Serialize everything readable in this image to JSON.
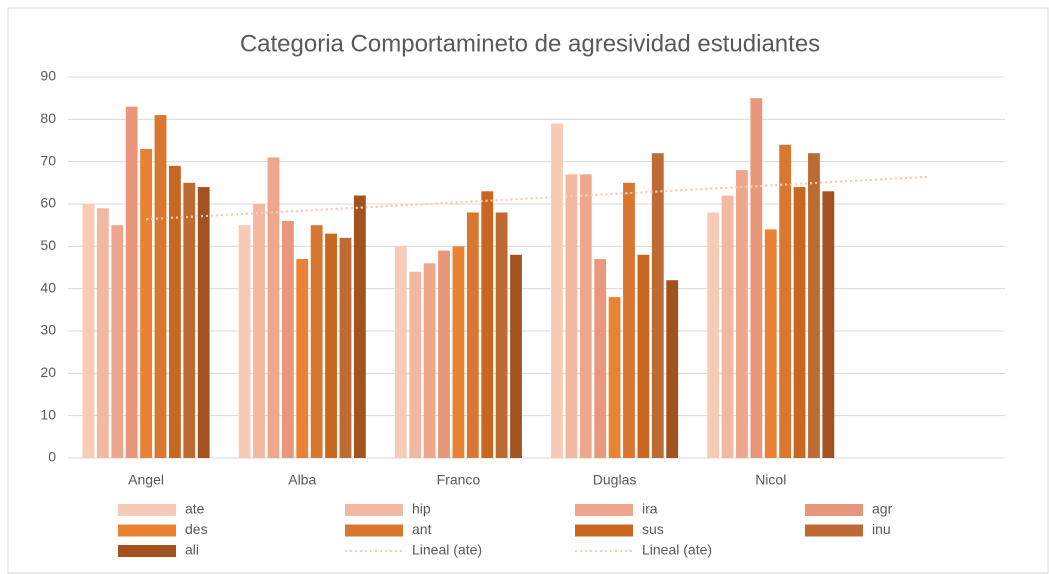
{
  "chart_data": {
    "type": "bar",
    "title": "Categoria Comportamineto de agresividad estudiantes",
    "categories": [
      "Angel",
      "Alba",
      "Franco",
      "Duglas",
      "Nicol",
      null
    ],
    "series": [
      {
        "name": "ate",
        "color": "#f7cbb5",
        "values": [
          60,
          55,
          50,
          79,
          58,
          null
        ]
      },
      {
        "name": "hip",
        "color": "#f3b9a0",
        "values": [
          59,
          60,
          44,
          67,
          62,
          null
        ]
      },
      {
        "name": "ira",
        "color": "#eea68c",
        "values": [
          55,
          71,
          46,
          67,
          68,
          null
        ]
      },
      {
        "name": "agr",
        "color": "#e9977a",
        "values": [
          83,
          56,
          49,
          47,
          85,
          null
        ]
      },
      {
        "name": "des",
        "color": "#ea8233",
        "values": [
          73,
          47,
          50,
          38,
          54,
          null
        ]
      },
      {
        "name": "ant",
        "color": "#d9762f",
        "values": [
          81,
          55,
          58,
          65,
          74,
          null
        ]
      },
      {
        "name": "sus",
        "color": "#c9661f",
        "values": [
          69,
          53,
          63,
          48,
          64,
          null
        ]
      },
      {
        "name": "inu",
        "color": "#bd6a33",
        "values": [
          65,
          52,
          58,
          72,
          72,
          null
        ]
      },
      {
        "name": "ali",
        "color": "#a3521f",
        "values": [
          64,
          62,
          48,
          42,
          63,
          null
        ]
      }
    ],
    "trendlines": [
      {
        "name": "Lineal (ate)",
        "series": 0,
        "color": "#f7cbb5"
      },
      {
        "name": "Lineal (ate)",
        "series": 0,
        "color": "#f7cbb5"
      }
    ],
    "ylim": [
      0,
      90
    ],
    "yticks": [
      0,
      10,
      20,
      30,
      40,
      50,
      60,
      70,
      80,
      90
    ],
    "grid": true
  }
}
